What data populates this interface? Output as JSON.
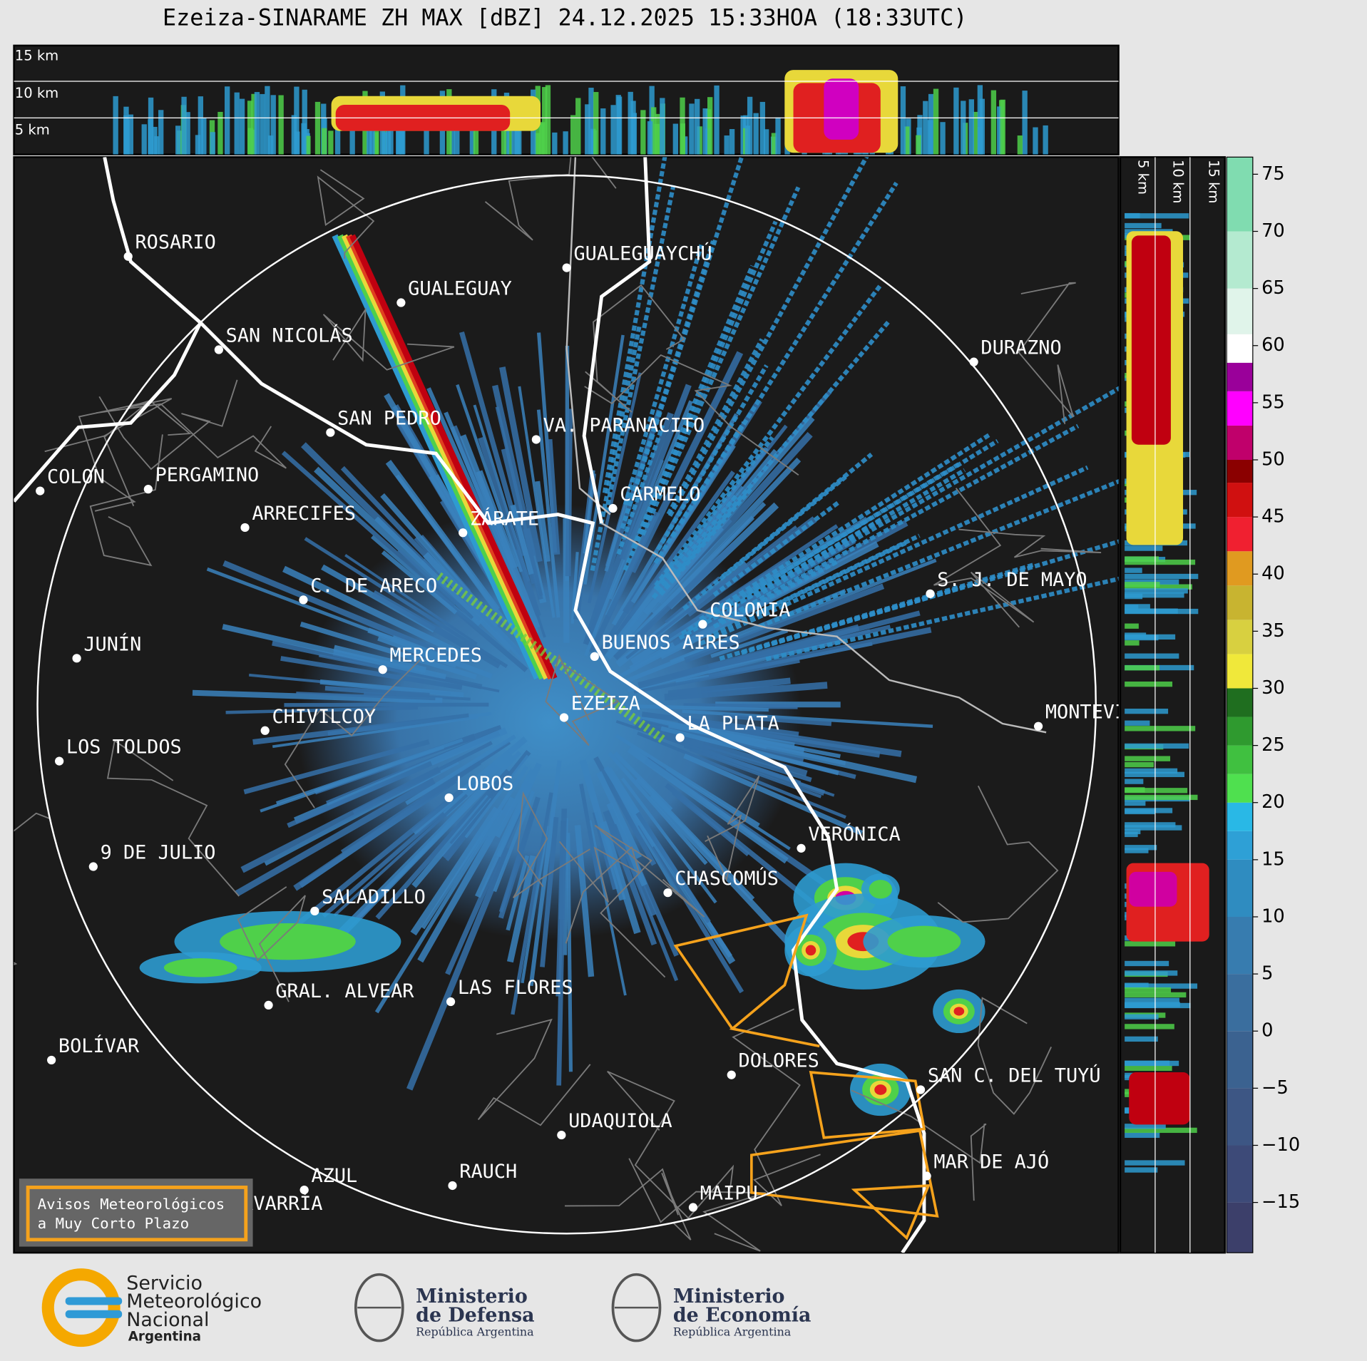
{
  "header": {
    "title": "Ezeiza-SINARAME ZH MAX [dBZ] 24.12.2025 15:33HOA (18:33UTC)"
  },
  "top_panel": {
    "height_labels": [
      "15 km",
      "10 km",
      "5 km"
    ]
  },
  "side_panel": {
    "height_labels": [
      "5 km",
      "10 km",
      "15 km"
    ]
  },
  "colorbar": {
    "ylim": [
      -19.4,
      76.5
    ],
    "yticks": [
      75,
      70,
      65,
      60,
      55,
      50,
      45,
      40,
      35,
      30,
      25,
      20,
      15,
      10,
      5,
      0,
      {
        "value": -5,
        "label": "−5"
      },
      {
        "value": -10,
        "label": "−10"
      },
      {
        "value": -15,
        "label": "−15"
      }
    ]
  },
  "map": {
    "cities": [
      "ROSARIO",
      "GUALEGUAYCHÚ",
      "GUALEGUAY",
      "SAN NICOLÁS",
      "DURAZNO",
      "SAN PEDRO",
      "VA. PARANACITO",
      "COLON",
      "PERGAMINO",
      "CARMELO",
      "ARRECIFES",
      "ZÁRATE",
      "S. J. DE MAYO",
      "C. DE ARECO",
      "COLONIA",
      "BUENOS AIRES",
      "JUNÍN",
      "MERCEDES",
      "EZEIZA",
      "MONTEVIDEO",
      "CHIVILCOY",
      "LA PLATA",
      "LOS TOLDOS",
      "LOBOS",
      "VERÓNICA",
      "9 DE JULIO",
      "CHASCOMÚS",
      "SALADILLO",
      "LAS FLORES",
      "GRAL. ALVEAR",
      "BOLÍVAR",
      "DOLORES",
      "SAN C. DEL TUYÚ",
      "UDAQUIOLA",
      "MAR DE AJÓ",
      "RAUCH",
      "AZUL",
      "OLAVARRÍA",
      "MAIPU"
    ]
  },
  "warning_box": {
    "lines": [
      "Avisos Meteorológicos",
      "a Muy Corto Plazo"
    ]
  },
  "logos": [
    {
      "lines": [
        "Servicio",
        "Meteorológico",
        "Nacional",
        "Argentina"
      ]
    },
    {
      "lines": [
        "Ministerio",
        "de Defensa",
        "República Argentina"
      ]
    },
    {
      "lines": [
        "Ministerio",
        "de Economía",
        "República Argentina"
      ]
    }
  ]
}
